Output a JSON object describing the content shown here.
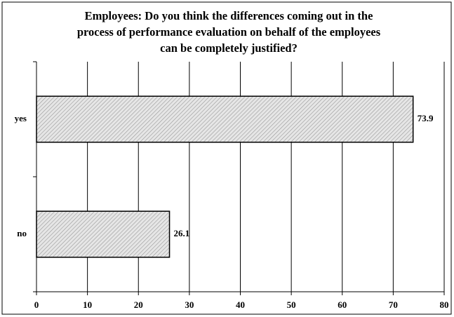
{
  "chart_data": {
    "type": "bar",
    "orientation": "horizontal",
    "title": [
      "Employees: Do you think the differences coming out in the",
      "process of performance evaluation on behalf of the employees",
      "can be completely justified?"
    ],
    "categories": [
      "yes",
      "no"
    ],
    "values": [
      73.9,
      26.1
    ],
    "color": "#d4d4d4",
    "xlim": [
      0,
      80
    ],
    "xticks": [
      0,
      10,
      20,
      30,
      40,
      50,
      60,
      70,
      80
    ],
    "grid": true
  }
}
